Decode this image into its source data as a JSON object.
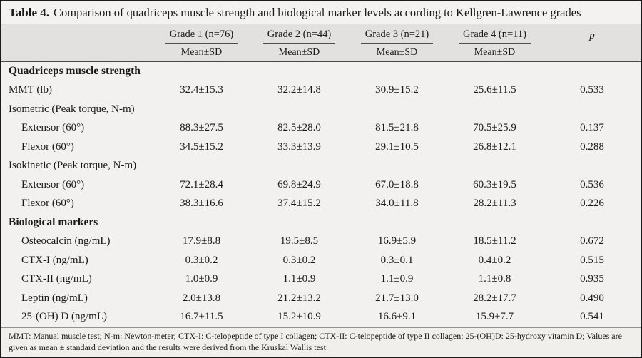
{
  "title": {
    "label": "Table 4.",
    "text": "Comparison of quadriceps muscle strength and biological marker levels according to Kellgren-Lawrence grades"
  },
  "columns": [
    {
      "label": "Grade 1 (n=76)",
      "sub": "Mean±SD"
    },
    {
      "label": "Grade 2 (n=44)",
      "sub": "Mean±SD"
    },
    {
      "label": "Grade 3 (n=21)",
      "sub": "Mean±SD"
    },
    {
      "label": "Grade 4 (n=11)",
      "sub": "Mean±SD"
    }
  ],
  "p_label": "p",
  "rows": [
    {
      "label": "Quadriceps muscle strength"
    },
    {
      "label": "MMT (lb)",
      "values": [
        "32.4±15.3",
        "32.2±14.8",
        "30.9±15.2",
        "25.6±11.5",
        "0.533"
      ]
    },
    {
      "label": "Isometric (Peak torque, N-m)"
    },
    {
      "label": "Extensor (60°)",
      "values": [
        "88.3±27.5",
        "82.5±28.0",
        "81.5±21.8",
        "70.5±25.9",
        "0.137"
      ]
    },
    {
      "label": "Flexor (60°)",
      "values": [
        "34.5±15.2",
        "33.3±13.9",
        "29.1±10.5",
        "26.8±12.1",
        "0.288"
      ]
    },
    {
      "label": "Isokinetic (Peak torque, N-m)"
    },
    {
      "label": "Extensor (60°)",
      "values": [
        "72.1±28.4",
        "69.8±24.9",
        "67.0±18.8",
        "60.3±19.5",
        "0.536"
      ]
    },
    {
      "label": "Flexor (60°)",
      "values": [
        "38.3±16.6",
        "37.4±15.2",
        "34.0±11.8",
        "28.2±11.3",
        "0.226"
      ]
    },
    {
      "label": "Biological markers"
    },
    {
      "label": "Osteocalcin (ng/mL)",
      "values": [
        "17.9±8.8",
        "19.5±8.5",
        "16.9±5.9",
        "18.5±11.2",
        "0.672"
      ]
    },
    {
      "label": "CTX-I (ng/mL)",
      "values": [
        "0.3±0.2",
        "0.3±0.2",
        "0.3±0.1",
        "0.4±0.2",
        "0.515"
      ]
    },
    {
      "label": "CTX-II (ng/mL)",
      "values": [
        "1.0±0.9",
        "1.1±0.9",
        "1.1±0.9",
        "1.1±0.8",
        "0.935"
      ]
    },
    {
      "label": "Leptin (ng/mL)",
      "values": [
        "2.0±13.8",
        "21.2±13.2",
        "21.7±13.0",
        "28.2±17.7",
        "0.490"
      ]
    },
    {
      "label": "25-(OH) D (ng/mL)",
      "values": [
        "16.7±11.5",
        "15.2±10.9",
        "16.6±9.1",
        "15.9±7.7",
        "0.541"
      ]
    }
  ],
  "footnote": "MMT: Manual muscle test; N-m: Newton-meter; CTX-I: C-telopeptide of type I collagen; CTX-II: C-telopeptide of type II collagen; 25-(OH)D: 25-hydroxy vitamin D; Values are given as mean ± standard deviation and the results were derived from the Kruskal Wallis test.",
  "colors": {
    "outer_border": "#1b1b1b",
    "header_band_bg": "#e2e1df",
    "body_bg": "#f2f1ef",
    "title_bg": "#f3f2f0",
    "footer_bg": "#f0efec",
    "rule_dark": "#4a4a4a",
    "footer_rule": "#929292",
    "text": "#1a1a1a"
  }
}
